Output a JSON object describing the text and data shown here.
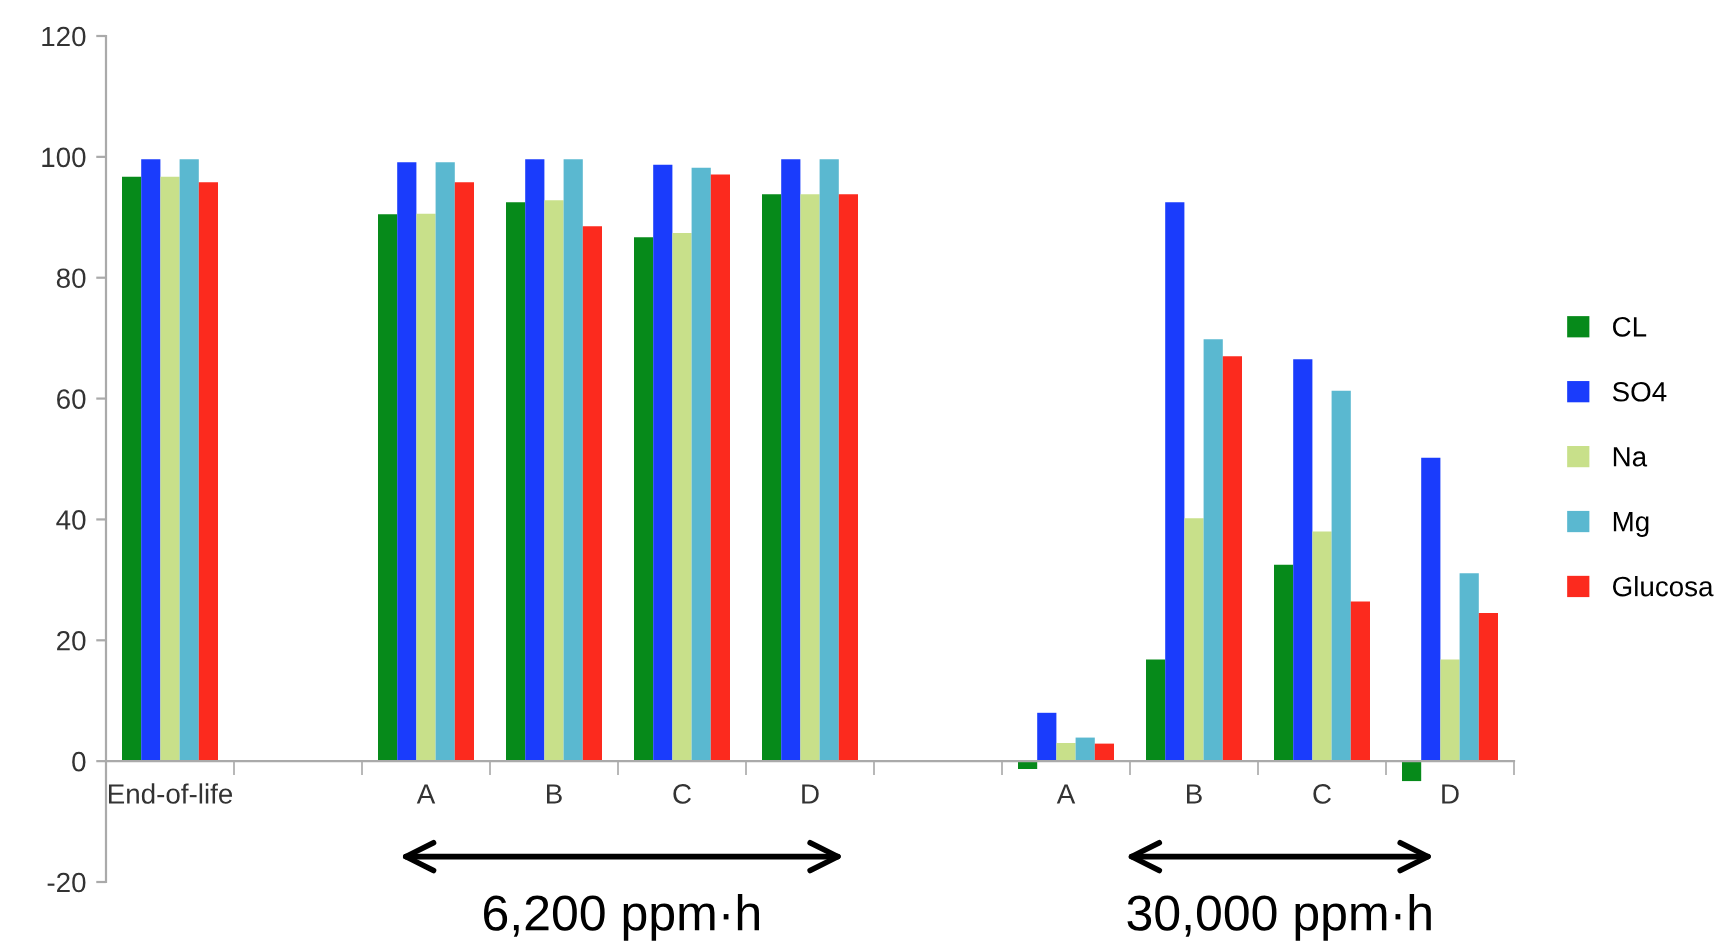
{
  "chart_data": {
    "type": "bar",
    "categories": [
      "End-of-life",
      null,
      "A",
      "B",
      "C",
      "D",
      null,
      "A",
      "B",
      "C",
      "D"
    ],
    "series": [
      {
        "name": "CL",
        "color": "#068a1a",
        "values": [
          96.7,
          null,
          90.5,
          92.5,
          86.7,
          93.8,
          null,
          -1.3,
          16.8,
          32.5,
          -3.3
        ]
      },
      {
        "name": "SO4",
        "color": "#1a3cfc",
        "values": [
          99.6,
          null,
          99.1,
          99.6,
          98.7,
          99.6,
          null,
          8.0,
          92.5,
          66.5,
          50.2
        ]
      },
      {
        "name": "Na",
        "color": "#c8e08a",
        "values": [
          96.7,
          null,
          90.6,
          92.8,
          87.4,
          93.8,
          null,
          3.0,
          40.2,
          38.0,
          16.8
        ]
      },
      {
        "name": "Mg",
        "color": "#5ab8d0",
        "values": [
          99.6,
          null,
          99.1,
          99.6,
          98.2,
          99.6,
          null,
          3.9,
          69.8,
          61.3,
          31.1
        ]
      },
      {
        "name": "Glucosa",
        "color": "#fc2a1e",
        "values": [
          95.8,
          null,
          95.8,
          88.5,
          97.1,
          93.8,
          null,
          2.9,
          67.0,
          26.4,
          24.5
        ]
      }
    ],
    "ylim": [
      -20,
      120
    ],
    "yticks": [
      -20,
      0,
      20,
      40,
      60,
      80,
      100,
      120
    ],
    "annotations": [
      "6,200 ppm·h",
      "30,000 ppm·h"
    ],
    "legend": "right",
    "grid": false
  }
}
